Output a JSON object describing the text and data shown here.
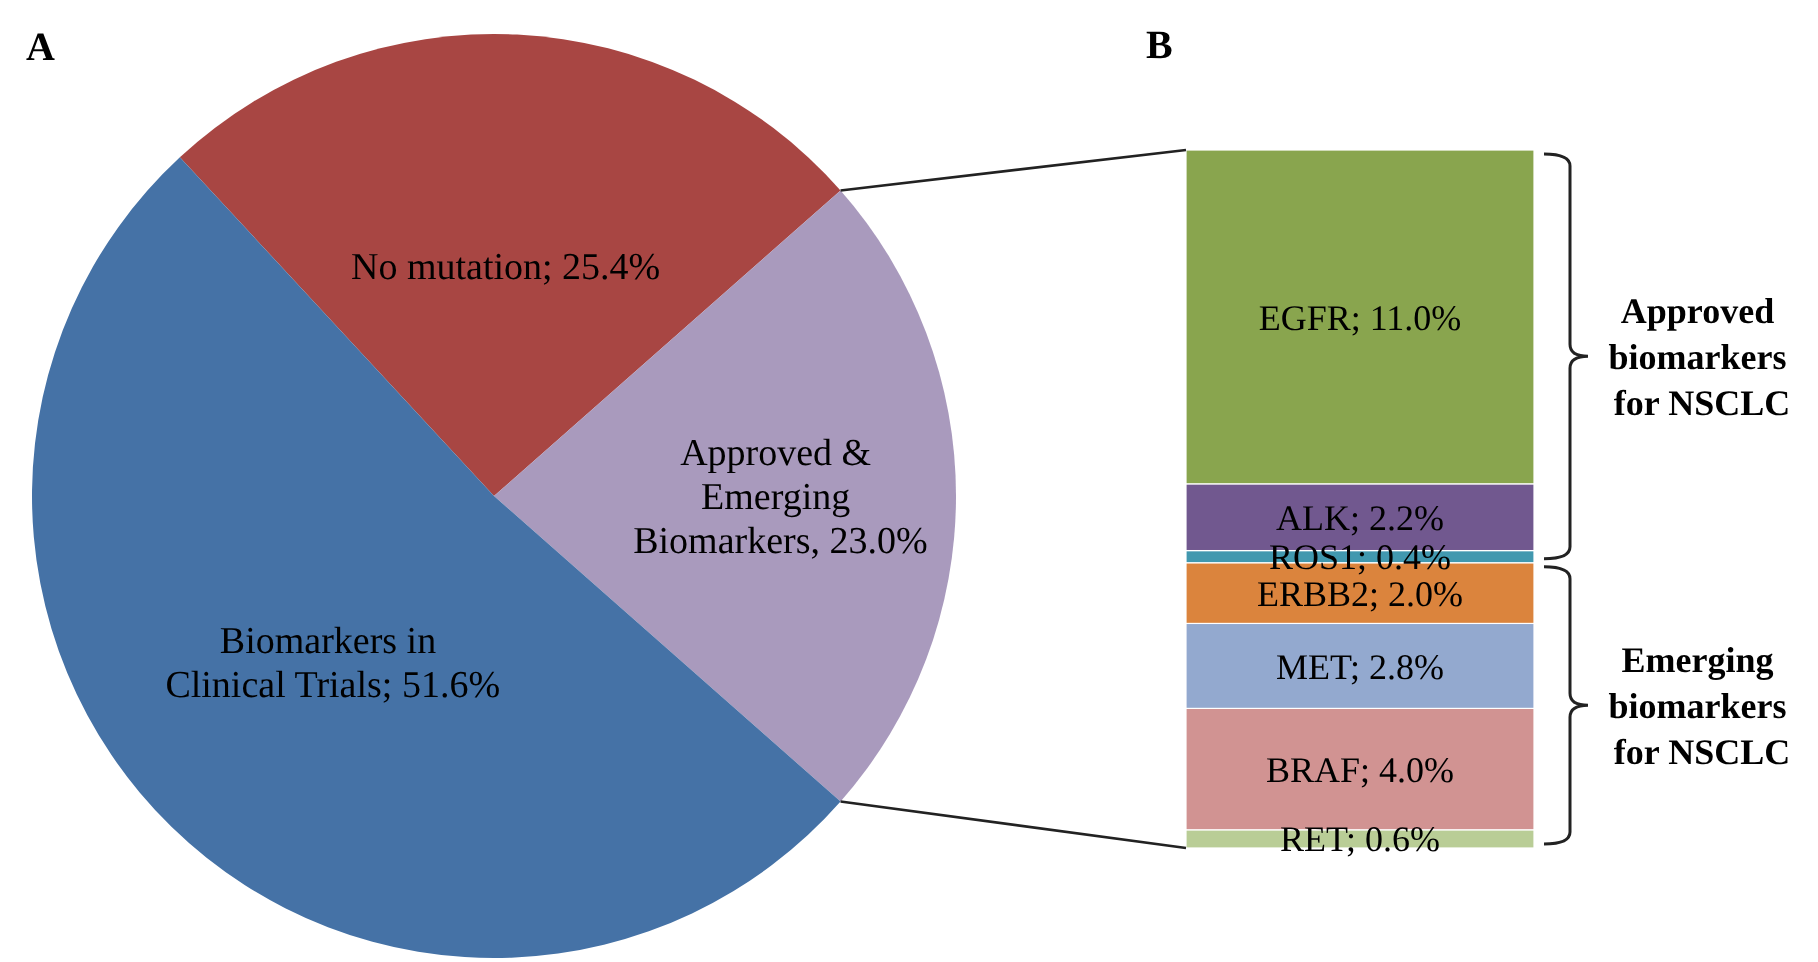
{
  "chart_data": [
    {
      "type": "pie",
      "title": "A",
      "categories": [
        "No mutation; 25.4%",
        "Approved & Emerging Biomarkers, 23.0%",
        "Biomarkers in Clinical Trials; 51.6%"
      ],
      "values": [
        25.4,
        23.0,
        51.6
      ],
      "colors": [
        "#a84643",
        "#a99abd",
        "#4572a6"
      ]
    },
    {
      "type": "bar",
      "title": "B",
      "categories": [
        null
      ],
      "stacked": true,
      "series": [
        {
          "name": "RET;",
          "color": "#b9cd96",
          "values": [
            0.6
          ],
          "value_labels": [
            "0.6%"
          ]
        },
        {
          "name": "BRAF;",
          "color": "#d19392",
          "values": [
            4.0
          ],
          "value_labels": [
            "4.0%"
          ]
        },
        {
          "name": "MET;",
          "color": "#93a9cf",
          "values": [
            2.8
          ],
          "value_labels": [
            "2.8%"
          ]
        },
        {
          "name": "ERBB2;",
          "color": "#db843d",
          "values": [
            2.0
          ],
          "value_labels": [
            "2.0%"
          ]
        },
        {
          "name": "ROS1;",
          "color": "#4198af",
          "values": [
            0.4
          ],
          "value_labels": [
            "0.4%"
          ]
        },
        {
          "name": "ALK;",
          "color": "#71588f",
          "values": [
            2.2
          ],
          "value_labels": [
            "2.2%"
          ]
        },
        {
          "name": "EGFR;",
          "color": "#89a54e",
          "values": [
            11.0
          ],
          "value_labels": [
            "11.0%"
          ]
        }
      ],
      "annotations": [
        "Approved biomarkers for NSCLC",
        "Emerging biomarkers for NSCLC"
      ]
    }
  ]
}
